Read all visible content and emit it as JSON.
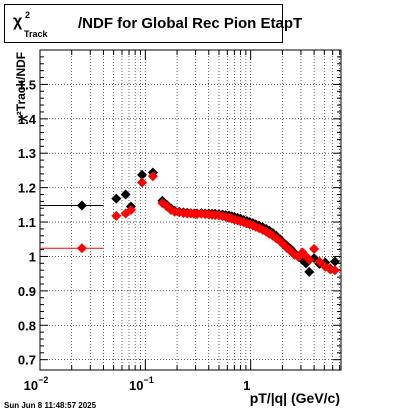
{
  "title": {
    "symbol": "χ",
    "sup": "2",
    "sub": "Track",
    "rest": "/NDF for Global Rec Pion EtapT"
  },
  "timestamp": "Sun Jun  8 11:48:57 2025",
  "chart_data": {
    "type": "scatter",
    "xlabel": "pT/|q| (GeV/c)",
    "ylabel": "χ²Track/NDF",
    "x_scale": "log",
    "xlim": [
      0.01,
      7.2
    ],
    "ylim": [
      0.67,
      1.6
    ],
    "grid": true,
    "x_ticks": [
      {
        "base": "10",
        "exp": "−2",
        "value": 0.01
      },
      {
        "base": "10",
        "exp": "−1",
        "value": 0.1
      },
      {
        "base": "1",
        "exp": "",
        "value": 1
      }
    ],
    "y_ticks": [
      "0.7",
      "0.8",
      "0.9",
      "1",
      "1.1",
      "1.2",
      "1.3",
      "1.4",
      "1.5"
    ],
    "series": [
      {
        "color": "#000000",
        "points": [
          {
            "x": 0.025,
            "y": 1.148,
            "xerr": [
              0.01,
              0.04
            ]
          },
          {
            "x": 0.053,
            "y": 1.168
          },
          {
            "x": 0.065,
            "y": 1.18
          },
          {
            "x": 0.073,
            "y": 1.145
          },
          {
            "x": 0.093,
            "y": 1.237
          },
          {
            "x": 0.118,
            "y": 1.244
          },
          {
            "x": 0.145,
            "y": 1.162
          },
          {
            "x": 0.16,
            "y": 1.15
          },
          {
            "x": 0.175,
            "y": 1.14
          },
          {
            "x": 0.19,
            "y": 1.133
          },
          {
            "x": 0.21,
            "y": 1.13
          },
          {
            "x": 0.23,
            "y": 1.128
          },
          {
            "x": 0.25,
            "y": 1.127
          },
          {
            "x": 0.27,
            "y": 1.126
          },
          {
            "x": 0.29,
            "y": 1.125
          },
          {
            "x": 0.31,
            "y": 1.125
          },
          {
            "x": 0.34,
            "y": 1.126
          },
          {
            "x": 0.37,
            "y": 1.125
          },
          {
            "x": 0.4,
            "y": 1.125
          },
          {
            "x": 0.43,
            "y": 1.124
          },
          {
            "x": 0.46,
            "y": 1.124
          },
          {
            "x": 0.5,
            "y": 1.123
          },
          {
            "x": 0.54,
            "y": 1.122
          },
          {
            "x": 0.58,
            "y": 1.12
          },
          {
            "x": 0.62,
            "y": 1.119
          },
          {
            "x": 0.66,
            "y": 1.117
          },
          {
            "x": 0.7,
            "y": 1.115
          },
          {
            "x": 0.75,
            "y": 1.112
          },
          {
            "x": 0.8,
            "y": 1.11
          },
          {
            "x": 0.86,
            "y": 1.106
          },
          {
            "x": 0.92,
            "y": 1.103
          },
          {
            "x": 0.98,
            "y": 1.1
          },
          {
            "x": 1.05,
            "y": 1.097
          },
          {
            "x": 1.12,
            "y": 1.093
          },
          {
            "x": 1.2,
            "y": 1.09
          },
          {
            "x": 1.3,
            "y": 1.085
          },
          {
            "x": 1.4,
            "y": 1.08
          },
          {
            "x": 1.5,
            "y": 1.075
          },
          {
            "x": 1.62,
            "y": 1.068
          },
          {
            "x": 1.75,
            "y": 1.06
          },
          {
            "x": 1.9,
            "y": 1.05
          },
          {
            "x": 2.05,
            "y": 1.04
          },
          {
            "x": 2.2,
            "y": 1.032
          },
          {
            "x": 2.4,
            "y": 1.022
          },
          {
            "x": 2.6,
            "y": 1.01
          },
          {
            "x": 2.85,
            "y": 1.0
          },
          {
            "x": 3.1,
            "y": 0.99
          },
          {
            "x": 3.35,
            "y": 0.98
          },
          {
            "x": 3.6,
            "y": 0.955
          },
          {
            "x": 4.0,
            "y": 0.995
          },
          {
            "x": 4.5,
            "y": 0.978
          },
          {
            "x": 5.1,
            "y": 0.982
          },
          {
            "x": 5.7,
            "y": 0.965
          },
          {
            "x": 6.3,
            "y": 0.985
          }
        ]
      },
      {
        "color": "#ff0000",
        "points": [
          {
            "x": 0.025,
            "y": 1.024,
            "xerr": [
              0.01,
              0.04
            ]
          },
          {
            "x": 0.053,
            "y": 1.118
          },
          {
            "x": 0.065,
            "y": 1.125
          },
          {
            "x": 0.073,
            "y": 1.135
          },
          {
            "x": 0.093,
            "y": 1.215
          },
          {
            "x": 0.118,
            "y": 1.233
          },
          {
            "x": 0.145,
            "y": 1.155
          },
          {
            "x": 0.16,
            "y": 1.145
          },
          {
            "x": 0.175,
            "y": 1.135
          },
          {
            "x": 0.19,
            "y": 1.13
          },
          {
            "x": 0.21,
            "y": 1.128
          },
          {
            "x": 0.23,
            "y": 1.126
          },
          {
            "x": 0.25,
            "y": 1.125
          },
          {
            "x": 0.27,
            "y": 1.125
          },
          {
            "x": 0.29,
            "y": 1.124
          },
          {
            "x": 0.31,
            "y": 1.123
          },
          {
            "x": 0.34,
            "y": 1.124
          },
          {
            "x": 0.37,
            "y": 1.123
          },
          {
            "x": 0.4,
            "y": 1.122
          },
          {
            "x": 0.43,
            "y": 1.121
          },
          {
            "x": 0.46,
            "y": 1.12
          },
          {
            "x": 0.5,
            "y": 1.119
          },
          {
            "x": 0.54,
            "y": 1.117
          },
          {
            "x": 0.58,
            "y": 1.115
          },
          {
            "x": 0.62,
            "y": 1.112
          },
          {
            "x": 0.66,
            "y": 1.11
          },
          {
            "x": 0.7,
            "y": 1.107
          },
          {
            "x": 0.75,
            "y": 1.105
          },
          {
            "x": 0.8,
            "y": 1.102
          },
          {
            "x": 0.86,
            "y": 1.099
          },
          {
            "x": 0.92,
            "y": 1.096
          },
          {
            "x": 0.98,
            "y": 1.093
          },
          {
            "x": 1.05,
            "y": 1.09
          },
          {
            "x": 1.12,
            "y": 1.086
          },
          {
            "x": 1.2,
            "y": 1.082
          },
          {
            "x": 1.3,
            "y": 1.077
          },
          {
            "x": 1.4,
            "y": 1.072
          },
          {
            "x": 1.5,
            "y": 1.066
          },
          {
            "x": 1.62,
            "y": 1.06
          },
          {
            "x": 1.75,
            "y": 1.052
          },
          {
            "x": 1.9,
            "y": 1.044
          },
          {
            "x": 2.05,
            "y": 1.034
          },
          {
            "x": 2.2,
            "y": 1.025
          },
          {
            "x": 2.4,
            "y": 1.015
          },
          {
            "x": 2.6,
            "y": 1.005
          },
          {
            "x": 2.85,
            "y": 0.998
          },
          {
            "x": 3.1,
            "y": 1.012
          },
          {
            "x": 3.35,
            "y": 1.0
          },
          {
            "x": 3.6,
            "y": 0.99
          },
          {
            "x": 4.0,
            "y": 1.022
          },
          {
            "x": 4.5,
            "y": 0.985
          },
          {
            "x": 5.1,
            "y": 0.97
          },
          {
            "x": 5.7,
            "y": 0.962
          },
          {
            "x": 6.3,
            "y": 0.96
          }
        ]
      }
    ]
  }
}
